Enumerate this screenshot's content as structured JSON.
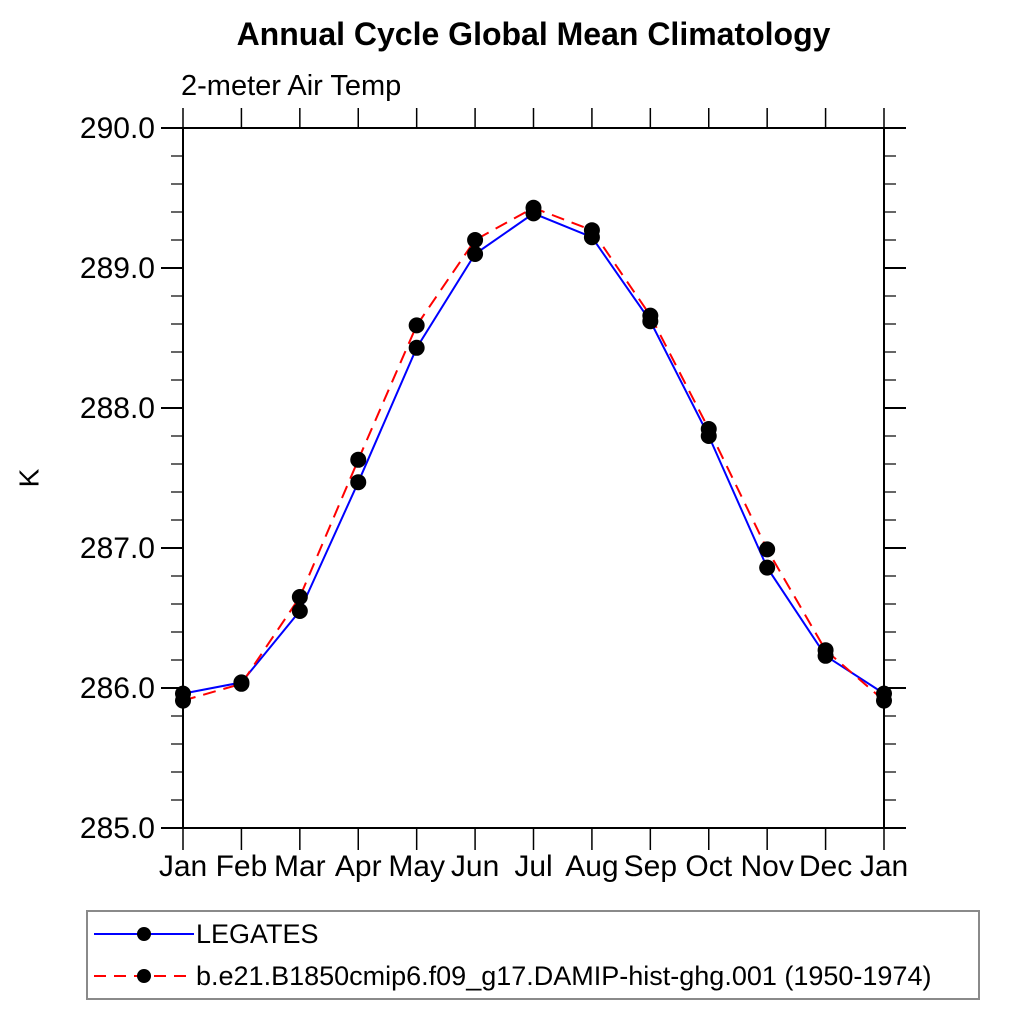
{
  "page": {
    "background": "#ffffff"
  },
  "chart_data": {
    "type": "line",
    "title": "Annual Cycle Global Mean Climatology",
    "subtitle": "2-meter Air Temp",
    "ylabel": "K",
    "xlabel": "",
    "x_categories": [
      "Jan",
      "Feb",
      "Mar",
      "Apr",
      "May",
      "Jun",
      "Jul",
      "Aug",
      "Sep",
      "Oct",
      "Nov",
      "Dec",
      "Jan"
    ],
    "ylim": [
      285.0,
      290.0
    ],
    "ytick_values": [
      290,
      289,
      288,
      287,
      286,
      285
    ],
    "ytick_labels": [
      "290.0",
      "289.0",
      "288.0",
      "287.0",
      "286.0",
      "285.0"
    ],
    "ytick_minor_step": 0.2,
    "grid": "off",
    "frame": "box",
    "tick_direction": "out",
    "legend_position": "bottom-left",
    "axis_color": "#000000",
    "marker_shape": "filled-circle",
    "series": [
      {
        "name": "LEGATES",
        "line_color": "#0000ff",
        "line_style": "solid",
        "marker_color": "#000000",
        "values": [
          285.96,
          286.04,
          286.55,
          287.47,
          288.43,
          289.1,
          289.39,
          289.22,
          288.62,
          287.8,
          286.86,
          286.23,
          285.96
        ]
      },
      {
        "name": "b.e21.B1850cmip6.f09_g17.DAMIP-hist-ghg.001 (1950-1974)",
        "line_color": "#ff0000",
        "line_style": "dashed",
        "marker_color": "#000000",
        "values": [
          285.91,
          286.03,
          286.65,
          287.63,
          288.59,
          289.2,
          289.43,
          289.27,
          288.66,
          287.85,
          286.99,
          286.27,
          285.91
        ]
      }
    ]
  }
}
